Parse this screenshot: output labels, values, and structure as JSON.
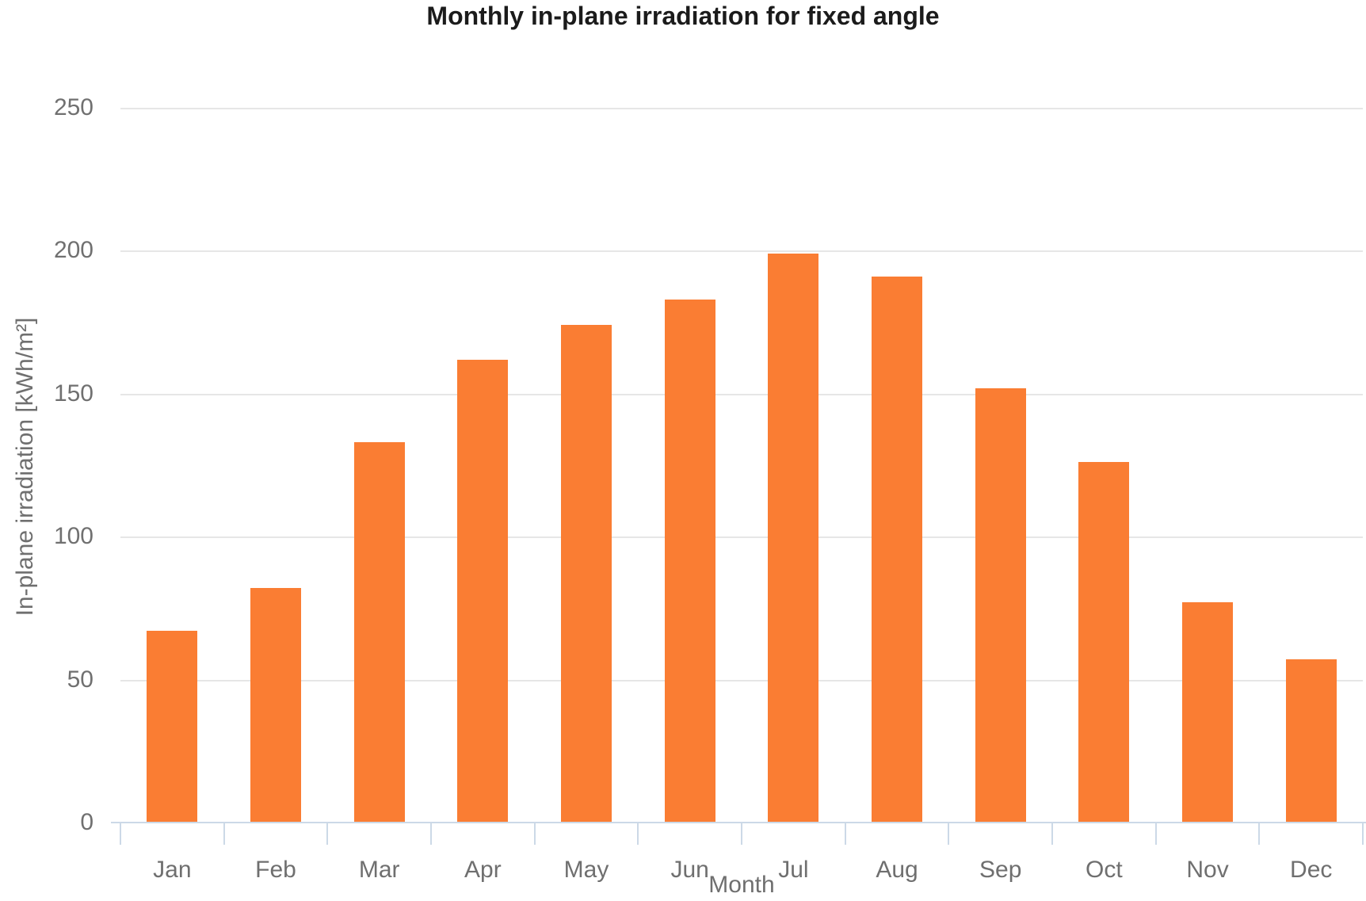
{
  "chart_data": {
    "type": "bar",
    "title": "Monthly in-plane irradiation for fixed angle",
    "xlabel": "Month",
    "ylabel": "In-plane irradiation [kWh/m²]",
    "categories": [
      "Jan",
      "Feb",
      "Mar",
      "Apr",
      "May",
      "Jun",
      "Jul",
      "Aug",
      "Sep",
      "Oct",
      "Nov",
      "Dec"
    ],
    "values": [
      67,
      82,
      133,
      162,
      174,
      183,
      199,
      191,
      152,
      126,
      77,
      57
    ],
    "ylim": [
      0,
      250
    ],
    "yticks": [
      0,
      50,
      100,
      150,
      200,
      250
    ],
    "grid": "horizontal-only",
    "legend": "none",
    "colors": {
      "bar": "#fa7d33",
      "gridline": "#e6e6e6",
      "axis_line": "#ccd9e7",
      "tick_label": "#707070",
      "axis_title": "#6f6f6f",
      "title": "#1b1b1b",
      "background": "#ffffff"
    }
  }
}
